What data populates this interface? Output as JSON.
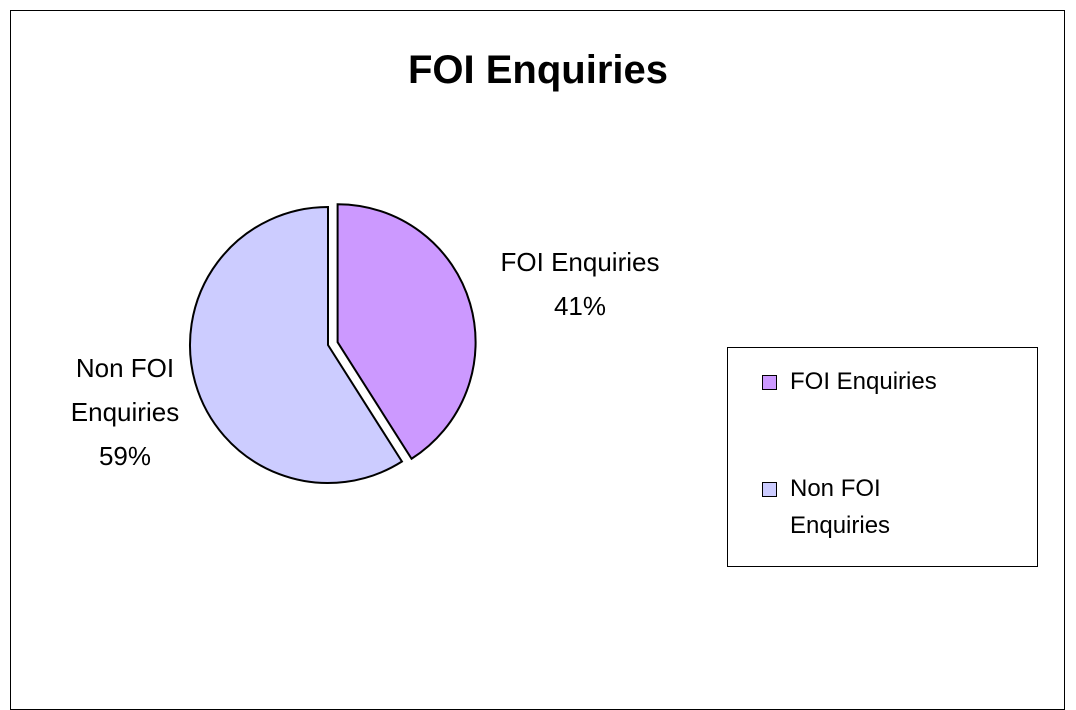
{
  "chart_data": {
    "type": "pie",
    "title": "FOI Enquiries",
    "categories": [
      "FOI Enquiries",
      "Non FOI Enquiries"
    ],
    "values": [
      41,
      59
    ],
    "value_labels": [
      "41%",
      "59%"
    ],
    "colors": [
      "#cc99ff",
      "#ccccff"
    ],
    "legend": "right"
  }
}
